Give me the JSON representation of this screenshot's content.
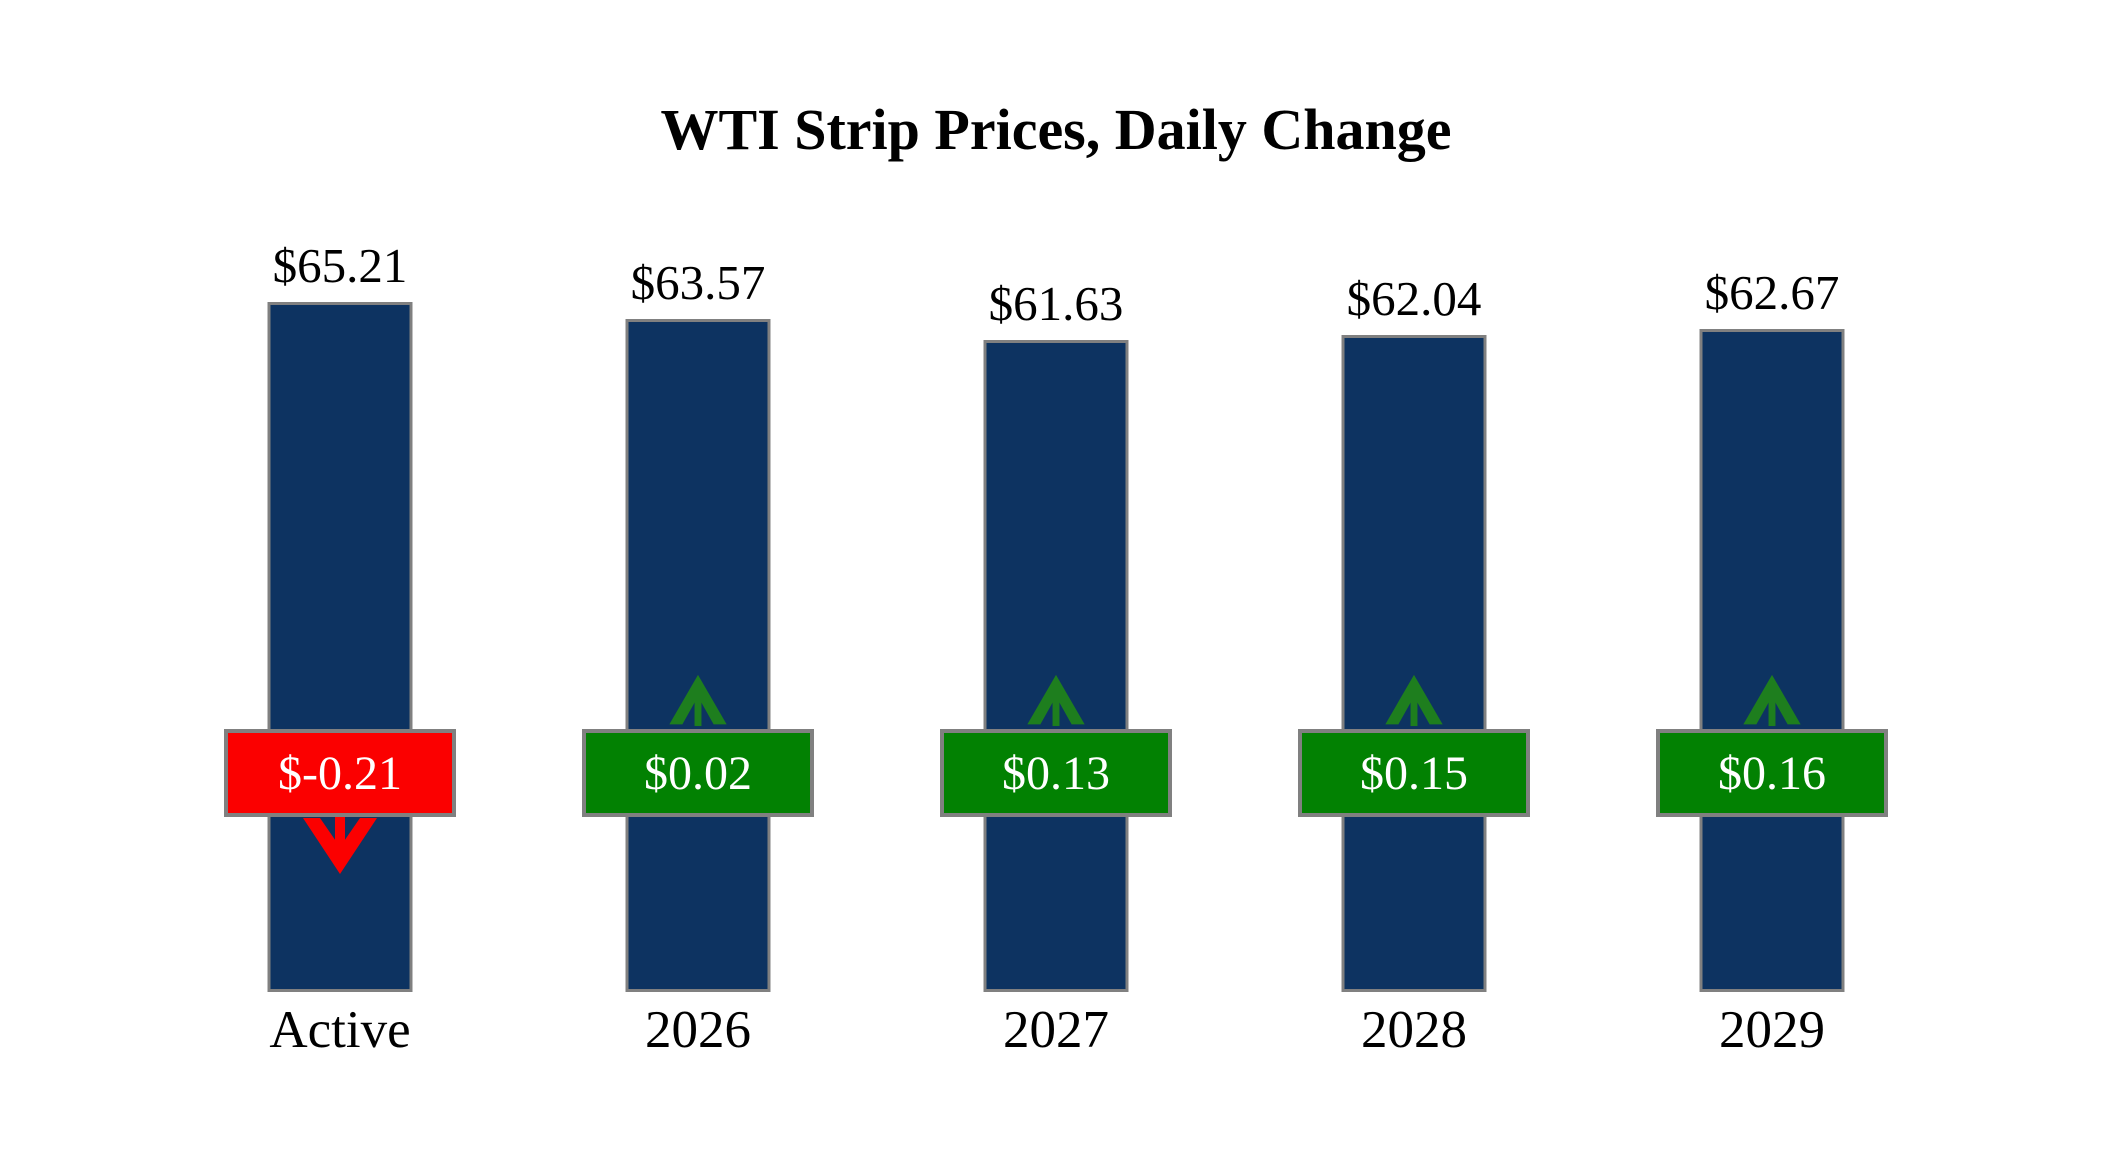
{
  "chart_data": {
    "type": "bar",
    "title": "WTI Strip Prices, Daily Change",
    "categories": [
      "Active",
      "2026",
      "2027",
      "2028",
      "2029"
    ],
    "series": [
      {
        "name": "strip_price",
        "values": [
          65.21,
          63.57,
          61.63,
          62.04,
          62.67
        ]
      },
      {
        "name": "daily_change",
        "values": [
          -0.21,
          0.02,
          0.13,
          0.15,
          0.16
        ]
      }
    ],
    "ylim": [
      0,
      69
    ],
    "grid": false,
    "legend": "none",
    "axes_shown": false
  },
  "columns": [
    {
      "category": "Active",
      "price_label": "$65.21",
      "change_label": "$-0.21",
      "direction": "down",
      "price": 65.21,
      "change": -0.21
    },
    {
      "category": "2026",
      "price_label": "$63.57",
      "change_label": "$0.02",
      "direction": "up",
      "price": 63.57,
      "change": 0.02
    },
    {
      "category": "2027",
      "price_label": "$61.63",
      "change_label": "$0.13",
      "direction": "up",
      "price": 61.63,
      "change": 0.13
    },
    {
      "category": "2028",
      "price_label": "$62.04",
      "change_label": "$0.15",
      "direction": "up",
      "price": 62.04,
      "change": 0.15
    },
    {
      "category": "2029",
      "price_label": "$62.67",
      "change_label": "$0.16",
      "direction": "up",
      "price": 62.67,
      "change": 0.16
    }
  ],
  "colors": {
    "background": "#FFFFFF",
    "bar_fill": "#0D3361",
    "border_gray": "#808080",
    "badge_positive": "#028102",
    "badge_negative": "#FB0000",
    "arrow_positive": "#1E7E1E",
    "arrow_negative": "#FB0000",
    "badge_text": "#FFFFFF",
    "label_text": "#000000"
  }
}
